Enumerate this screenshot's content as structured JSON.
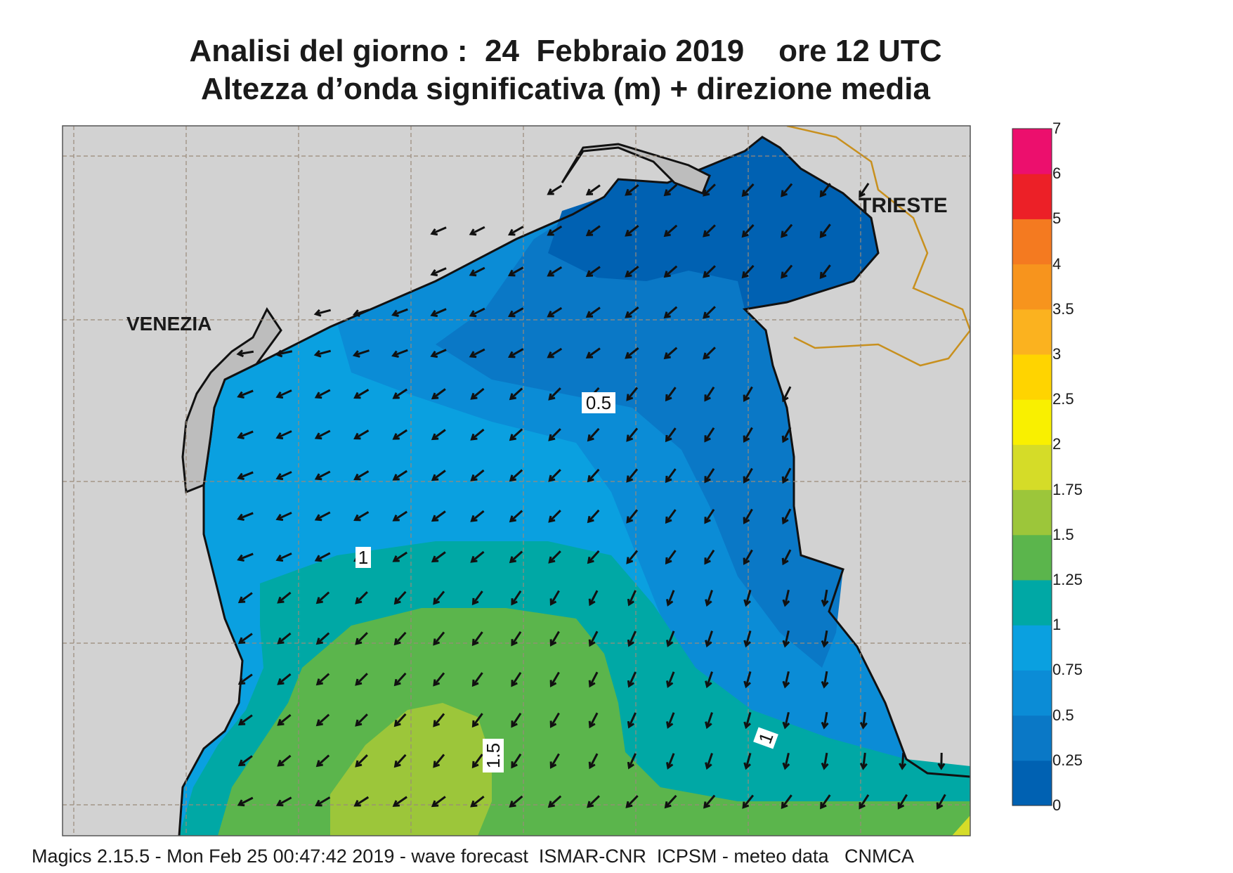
{
  "title_line1": "Analisi del giorno :  24  Febbraio 2019    ore 12 UTC",
  "title_line2": "Altezza d’onda significativa (m) + direzione media",
  "footer": "Magics 2.15.5 - Mon Feb 25 00:47:42 2019 - wave forecast  ISMAR-CNR  ICPSM - meteo data   CNMCA",
  "cities": [
    "VENEZIA",
    "TRIESTE"
  ],
  "contour_labels": [
    "0.5",
    "1",
    "1.5",
    "1"
  ],
  "colorbar": {
    "labels": [
      "0",
      "0.25",
      "0.5",
      "0.75",
      "1",
      "1.25",
      "1.5",
      "1.75",
      "2",
      "2.5",
      "3",
      "3.5",
      "4",
      "5",
      "6",
      "7"
    ],
    "colors": [
      "#0061b2",
      "#0a78c6",
      "#0b8cd6",
      "#0aa0e0",
      "#00a8a5",
      "#5bb54c",
      "#9cc63a",
      "#d5dc28",
      "#f9f000",
      "#ffd400",
      "#fbb21f",
      "#f7941d",
      "#f47a20",
      "#ec2027",
      "#ec0f6d"
    ]
  },
  "map_colors": {
    "land": "#d2d2d2",
    "lagoon": "#bdbdbd",
    "wave_0_025": "#0061b2",
    "wave_025_05": "#0a78c6",
    "wave_05_075": "#0b8cd6",
    "wave_075_1": "#0aa0e0",
    "wave_1_125": "#00a8a5",
    "wave_125_15": "#5bb54c",
    "wave_15_175": "#9cc63a",
    "border": "#c8901e"
  }
}
